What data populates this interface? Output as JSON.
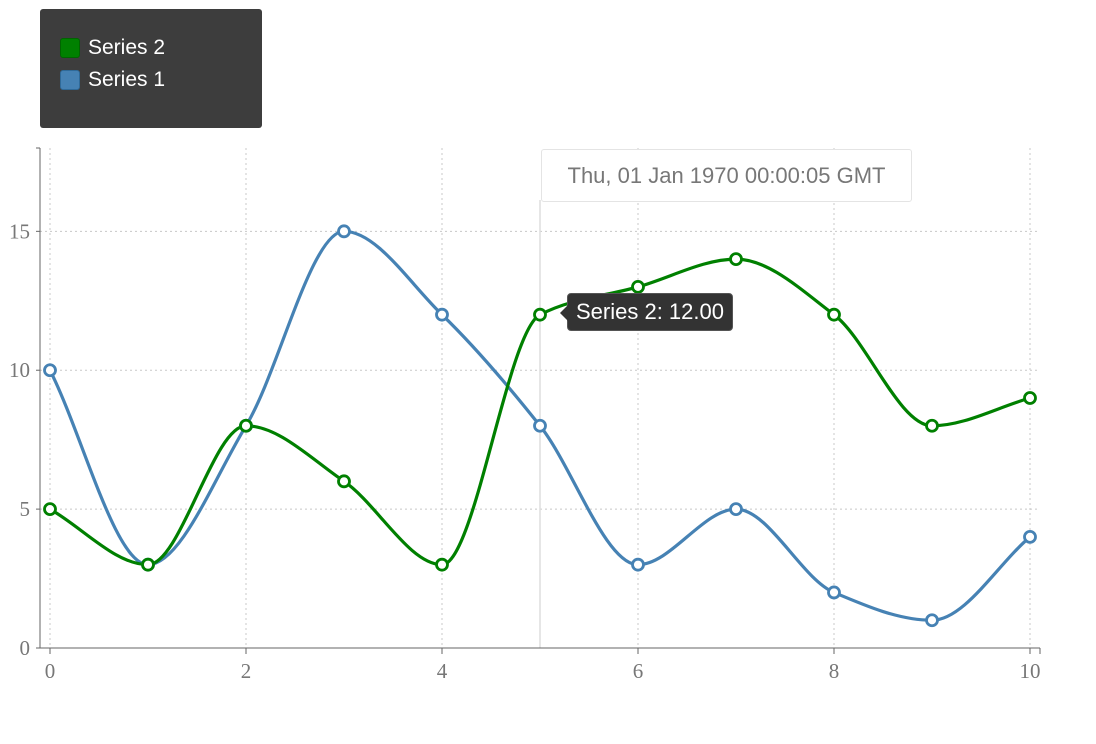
{
  "chart_data": {
    "type": "line",
    "x": [
      0,
      1,
      2,
      3,
      4,
      5,
      6,
      7,
      8,
      9,
      10
    ],
    "series": [
      {
        "name": "Series 1",
        "color": "#4682b4",
        "values": [
          10,
          3,
          8,
          15,
          12,
          8,
          3,
          5,
          2,
          1,
          4
        ]
      },
      {
        "name": "Series 2",
        "color": "#008000",
        "values": [
          5,
          3,
          8,
          6,
          3,
          12,
          13,
          14,
          12,
          8,
          9
        ]
      }
    ],
    "xlim": [
      0,
      10
    ],
    "ylim": [
      0,
      18
    ],
    "x_ticks": [
      "0",
      "2",
      "4",
      "6",
      "8",
      "10"
    ],
    "y_ticks": [
      "0",
      "5",
      "10",
      "15"
    ],
    "grid": true,
    "legend_position": "top-left",
    "legend_order": [
      "Series 2",
      "Series 1"
    ],
    "hover": {
      "x": 5,
      "timestamp_label": "Thu, 01 Jan 1970 00:00:05 GMT",
      "tooltip": "Series 2: 12.00"
    }
  }
}
